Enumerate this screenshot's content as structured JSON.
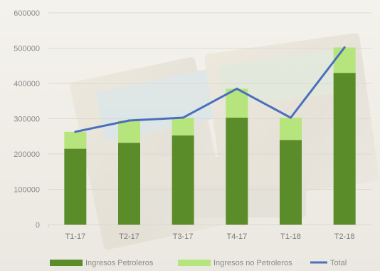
{
  "chart_data": {
    "type": "bar",
    "stacked": true,
    "categories": [
      "T1-17",
      "T2-17",
      "T3-17",
      "T4-17",
      "T1-18",
      "T2-18"
    ],
    "series": [
      {
        "name": "Ingresos Petroleros",
        "kind": "bar",
        "color": "#5b8c2a",
        "values": [
          215000,
          232000,
          253000,
          303000,
          240000,
          430000
        ]
      },
      {
        "name": "Ingresos no Petroleros",
        "kind": "bar",
        "color": "#b7e57d",
        "values": [
          48000,
          63000,
          50000,
          82000,
          63000,
          72000
        ]
      },
      {
        "name": "Total",
        "kind": "line",
        "color": "#4a6fbd",
        "values": [
          263000,
          295000,
          303000,
          385000,
          303000,
          502000
        ]
      }
    ],
    "y_ticks": [
      "0",
      "100000",
      "200000",
      "300000",
      "400000",
      "500000",
      "600000"
    ],
    "ylim": [
      0,
      600000
    ],
    "grid": true,
    "legend_position": "bottom"
  }
}
